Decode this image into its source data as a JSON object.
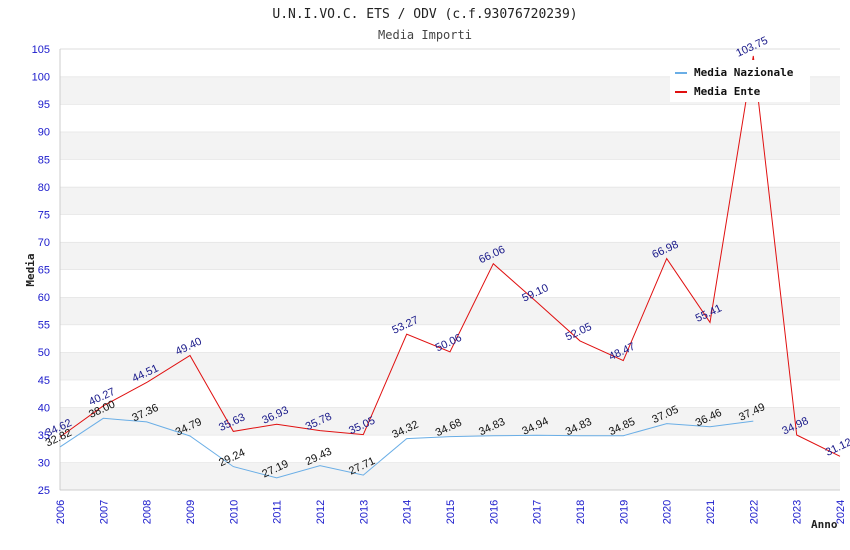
{
  "chart_data": {
    "type": "line",
    "title": "U.N.I.VO.C. ETS / ODV (c.f.93076720239)",
    "subtitle": "Media Importi",
    "xlabel": "Anno",
    "ylabel": "Media",
    "ylim": [
      25,
      105
    ],
    "ytick_step": 5,
    "grid": true,
    "legend_position": "top-right",
    "x": [
      "2006",
      "2007",
      "2008",
      "2009",
      "2010",
      "2011",
      "2012",
      "2013",
      "2014",
      "2015",
      "2016",
      "2017",
      "2018",
      "2019",
      "2020",
      "2021",
      "2022",
      "2023",
      "2024"
    ],
    "series": [
      {
        "name": "Media Nazionale",
        "color": "#6aaee6",
        "label_color": "#111111",
        "values": [
          32.82,
          38.0,
          37.36,
          34.79,
          29.24,
          27.19,
          29.43,
          27.71,
          34.32,
          34.68,
          34.83,
          34.94,
          34.83,
          34.85,
          37.05,
          36.46,
          37.49,
          null,
          null
        ],
        "labels": [
          "32.82",
          "38.00",
          "37.36",
          "34.79",
          "29.24",
          "27.19",
          "29.43",
          "27.71",
          "34.32",
          "34.68",
          "34.83",
          "34.94",
          "34.83",
          "34.85",
          "37.05",
          "36.46",
          "37.49",
          null,
          null
        ]
      },
      {
        "name": "Media Ente",
        "color": "#e01010",
        "label_color": "#1a1a8a",
        "values": [
          34.62,
          40.27,
          44.51,
          49.4,
          35.63,
          36.93,
          35.78,
          35.05,
          53.27,
          50.06,
          66.06,
          59.1,
          52.05,
          48.47,
          66.98,
          55.41,
          103.75,
          34.98,
          31.12
        ],
        "labels": [
          "34.62",
          "40.27",
          "44.51",
          "49.40",
          "35.63",
          "36.93",
          "35.78",
          "35.05",
          "53.27",
          "50.06",
          "66.06",
          "59.10",
          "52.05",
          "48.47",
          "66.98",
          "55.41",
          "103.75",
          "34.98",
          "31.12"
        ]
      }
    ]
  }
}
